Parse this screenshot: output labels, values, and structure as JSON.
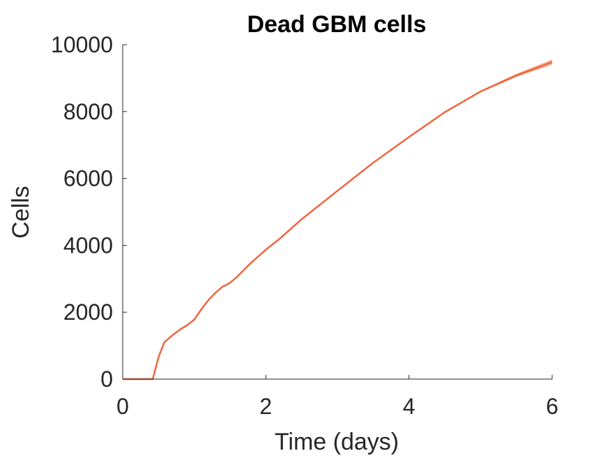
{
  "chart_data": {
    "type": "line",
    "title": "Dead GBM cells",
    "xlabel": "Time (days)",
    "ylabel": "Cells",
    "xlim": [
      0,
      6
    ],
    "ylim": [
      0,
      10000
    ],
    "xticks": [
      0,
      2,
      4,
      6
    ],
    "yticks": [
      0,
      2000,
      4000,
      6000,
      8000,
      10000
    ],
    "xtick_labels": [
      "0",
      "2",
      "4",
      "6"
    ],
    "ytick_labels": [
      "0",
      "2000",
      "4000",
      "6000",
      "8000",
      "10000"
    ],
    "grid": false,
    "legend": false,
    "series": [
      {
        "color": "#f0653e",
        "band_color": "#f4a48a",
        "x": [
          0,
          0.42,
          0.5,
          0.58,
          0.7,
          0.8,
          0.9,
          1.0,
          1.1,
          1.2,
          1.3,
          1.4,
          1.45,
          1.5,
          1.6,
          1.7,
          1.8,
          2.0,
          2.2,
          2.5,
          3.0,
          3.5,
          4.0,
          4.5,
          5.0,
          5.5,
          6.0
        ],
        "values": [
          0,
          0,
          650,
          1100,
          1320,
          1480,
          1610,
          1780,
          2090,
          2370,
          2590,
          2770,
          2820,
          2880,
          3060,
          3280,
          3490,
          3870,
          4210,
          4780,
          5630,
          6470,
          7240,
          7980,
          8600,
          9080,
          9480
        ],
        "band_halfwidth": [
          0,
          0,
          0,
          0,
          0,
          0,
          0,
          0,
          0,
          0,
          0,
          0,
          0,
          0,
          0,
          0,
          0,
          0,
          0,
          0,
          5,
          8,
          10,
          15,
          25,
          50,
          80
        ]
      }
    ]
  }
}
